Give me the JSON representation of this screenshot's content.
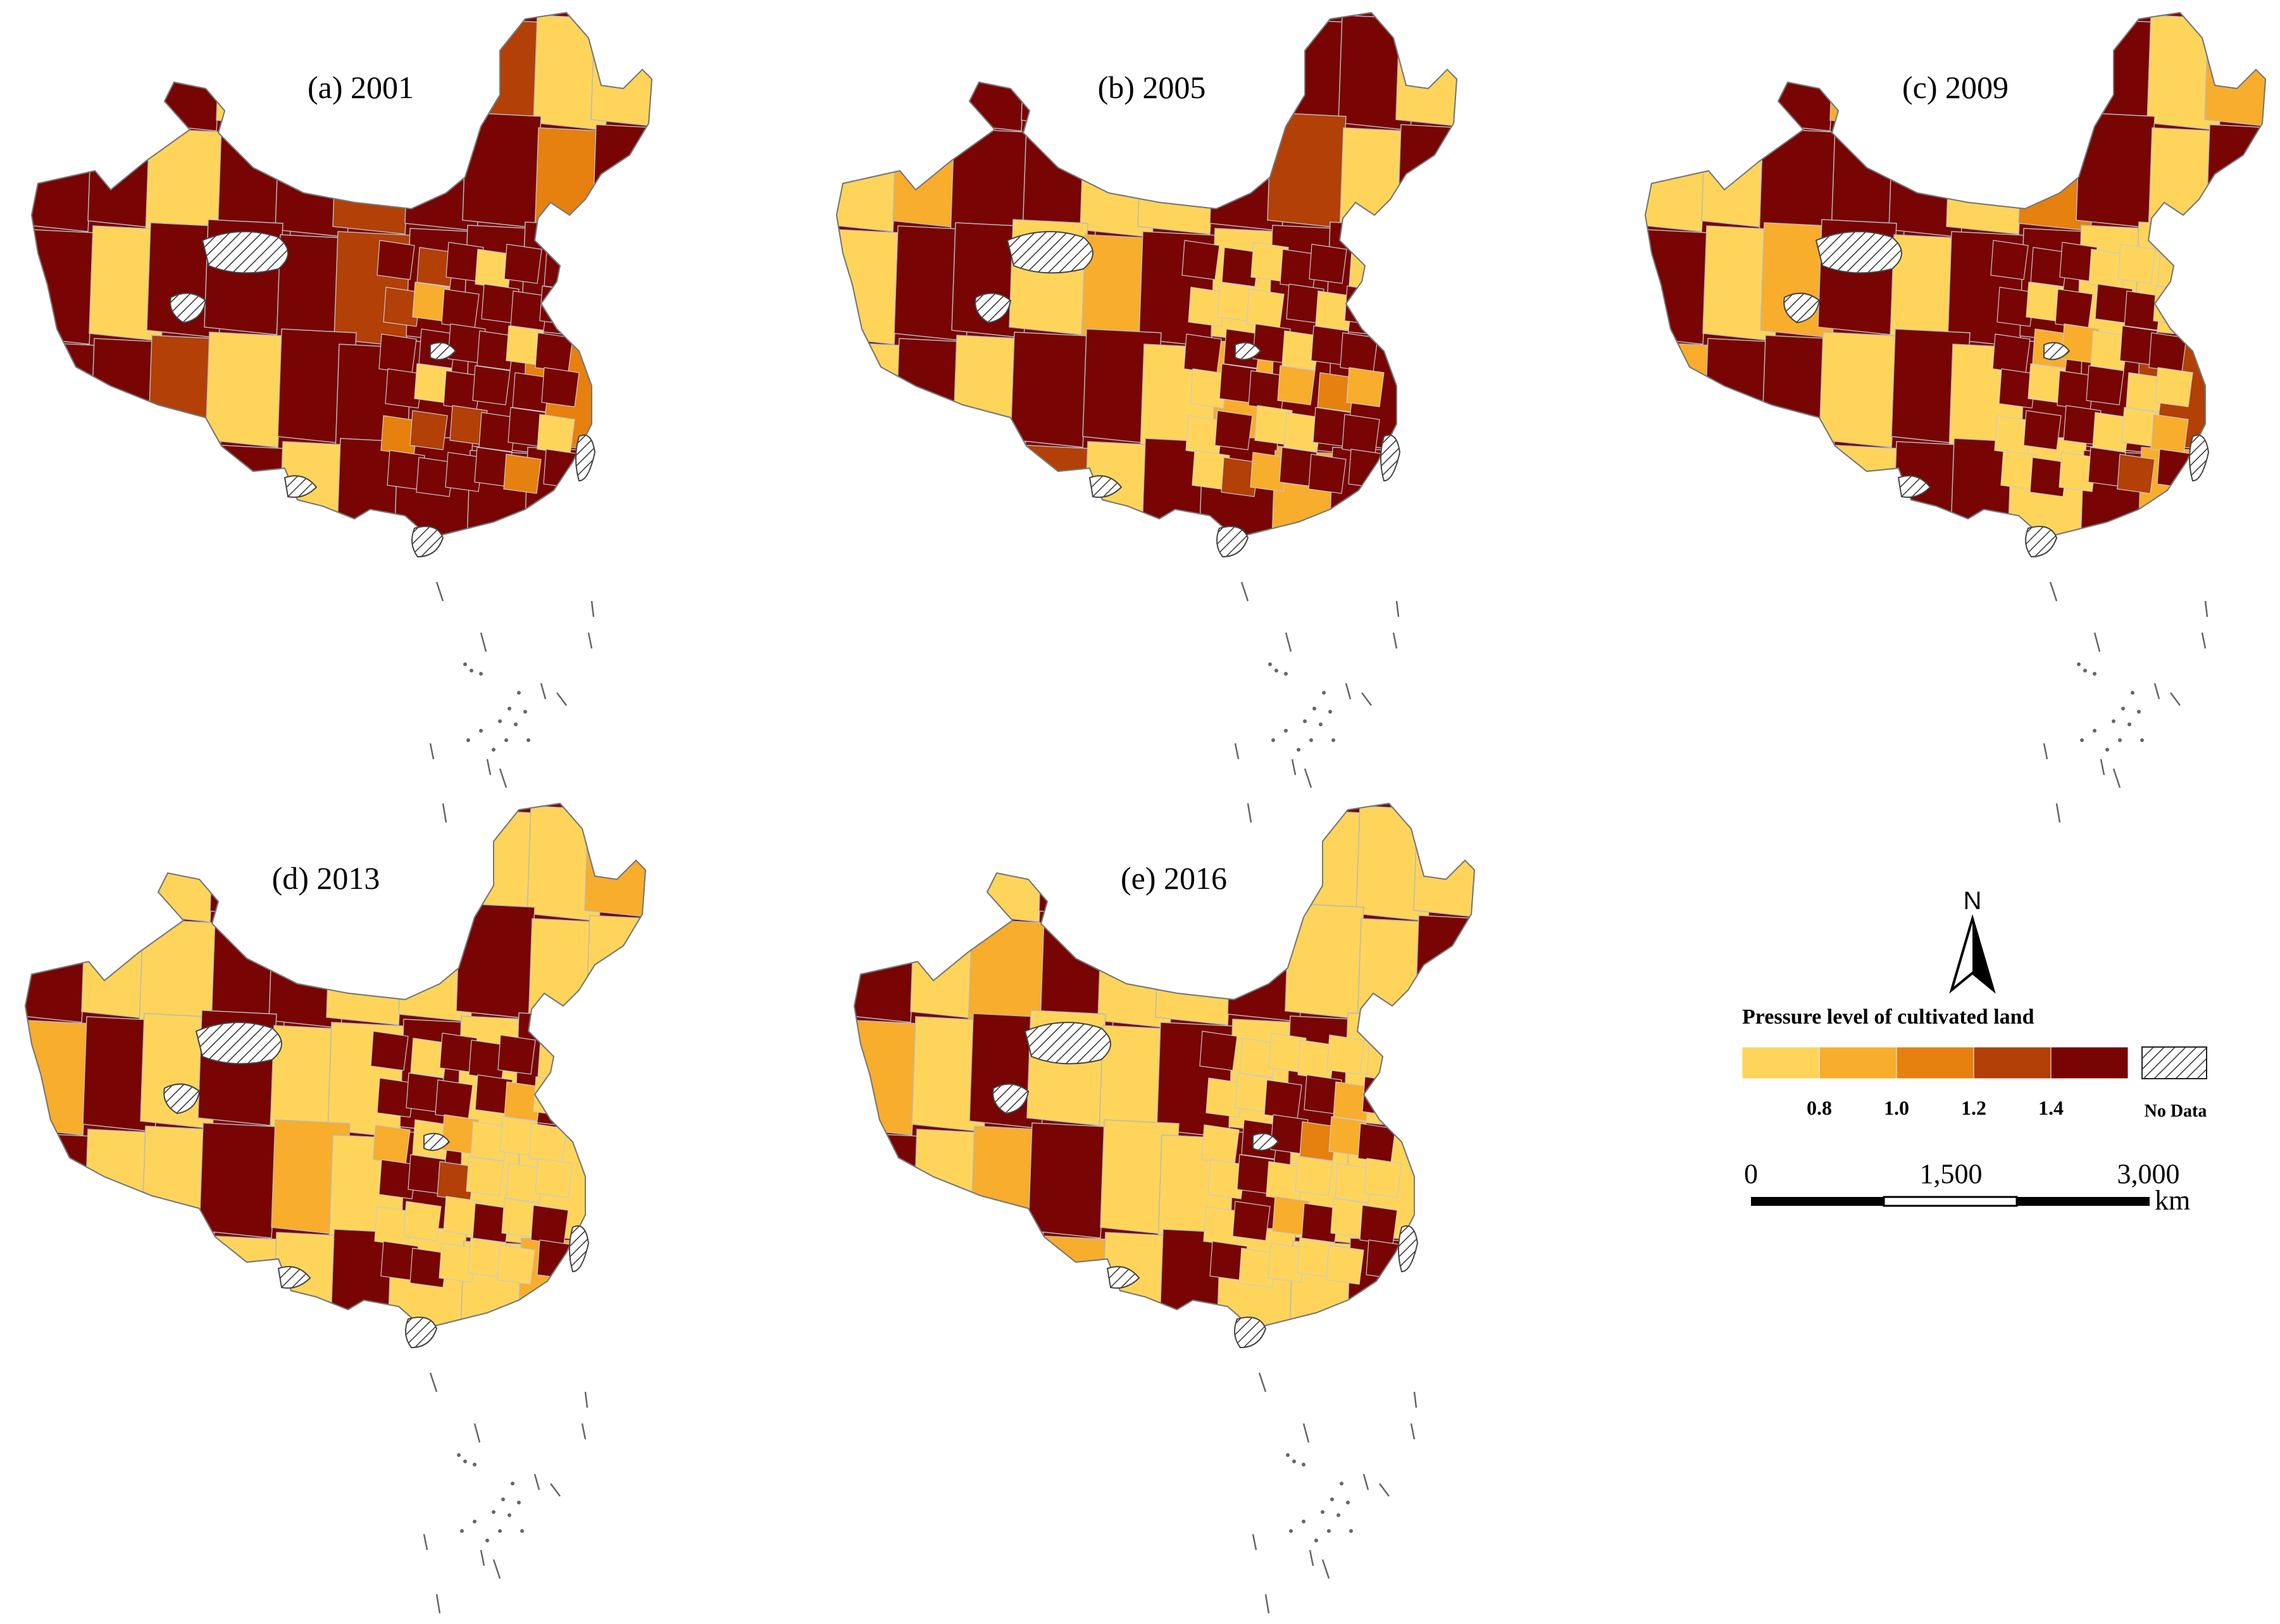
{
  "figure": {
    "panels": [
      {
        "label": "(a) 2001",
        "year": 2001,
        "pattern": [
          4,
          4,
          4,
          0,
          4,
          4,
          4,
          3,
          0,
          0,
          4,
          4,
          0,
          4,
          4,
          3,
          4,
          4,
          2,
          4,
          4,
          0,
          4,
          4,
          4,
          3,
          4,
          4,
          4,
          0,
          4,
          4,
          3,
          0,
          4,
          4,
          4,
          4,
          2,
          4,
          4,
          4,
          3,
          4,
          0,
          4,
          4,
          4,
          4,
          1
        ]
      },
      {
        "label": "(b) 2005",
        "year": 2005,
        "pattern": [
          4,
          0,
          4,
          4,
          2,
          0,
          0,
          4,
          4,
          0,
          0,
          1,
          4,
          4,
          0,
          0,
          4,
          3,
          0,
          4,
          0,
          4,
          4,
          0,
          1,
          4,
          0,
          4,
          4,
          2,
          0,
          4,
          0,
          4,
          4,
          0,
          1,
          4,
          4,
          0,
          4,
          4,
          0,
          3,
          0,
          4,
          4,
          1,
          4,
          0
        ]
      },
      {
        "label": "(c) 2009",
        "year": 2009,
        "pattern": [
          4,
          0,
          4,
          1,
          0,
          0,
          4,
          4,
          0,
          1,
          0,
          0,
          4,
          4,
          4,
          0,
          2,
          4,
          0,
          4,
          4,
          0,
          1,
          4,
          0,
          4,
          4,
          0,
          0,
          4,
          1,
          4,
          4,
          0,
          4,
          0,
          4,
          4,
          3,
          0,
          4,
          1,
          4,
          0,
          4,
          4,
          0,
          4,
          1,
          0
        ]
      },
      {
        "label": "(d) 2013",
        "year": 2013,
        "pattern": [
          4,
          0,
          0,
          4,
          0,
          0,
          4,
          0,
          0,
          1,
          4,
          0,
          0,
          4,
          4,
          0,
          0,
          4,
          0,
          0,
          1,
          4,
          0,
          4,
          0,
          0,
          4,
          0,
          4,
          0,
          4,
          0,
          0,
          4,
          1,
          0,
          4,
          0,
          0,
          4,
          3,
          0,
          4,
          0,
          0,
          4,
          0,
          0,
          1,
          4
        ]
      },
      {
        "label": "(e) 2016",
        "year": 2016,
        "pattern": [
          4,
          0,
          0,
          4,
          0,
          2,
          4,
          0,
          0,
          0,
          4,
          0,
          1,
          4,
          0,
          0,
          4,
          0,
          0,
          4,
          1,
          0,
          4,
          0,
          0,
          4,
          0,
          4,
          0,
          0,
          4,
          0,
          1,
          4,
          0,
          0,
          4,
          0,
          0,
          4,
          0,
          4,
          0,
          1,
          0,
          4,
          0,
          0,
          4,
          0
        ]
      }
    ]
  },
  "legend": {
    "north_label": "N",
    "title": "Pressure level of cultivated land",
    "classes": [
      {
        "color": "#fed55a"
      },
      {
        "color": "#f8ad2c"
      },
      {
        "color": "#e6800f"
      },
      {
        "color": "#b24007"
      },
      {
        "color": "#780404"
      }
    ],
    "breaks": [
      "0.8",
      "1.0",
      "1.2",
      "1.4"
    ],
    "no_data_label": "No Data"
  },
  "scale_bar": {
    "ticks": [
      "0",
      "1,500",
      "3,000"
    ],
    "unit": "km"
  }
}
